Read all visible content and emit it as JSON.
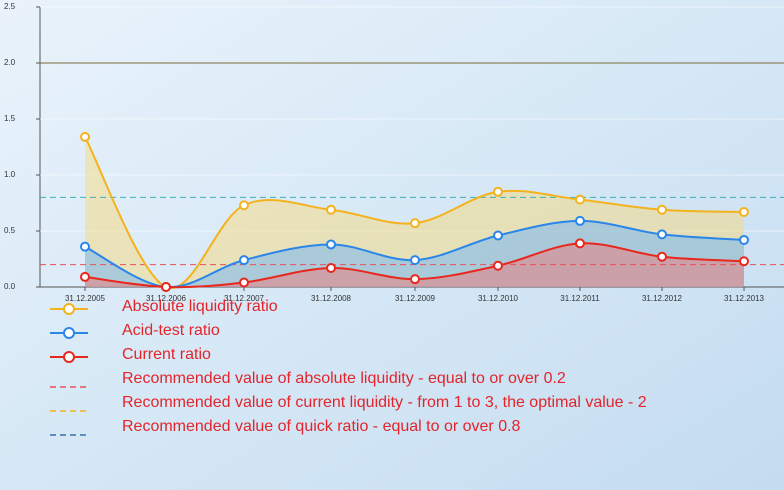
{
  "chart_data": {
    "type": "line",
    "categories": [
      "31.12.2005",
      "31.12.2006",
      "31.12.2007",
      "31.12.2008",
      "31.12.2009",
      "31.12.2010",
      "31.12.2011",
      "31.12.2012",
      "31.12.2013"
    ],
    "series": [
      {
        "name": "Absolute liquidity ratio",
        "color": "#f5b21f",
        "fill": "rgba(250,215,110,0.45)",
        "values": [
          1.34,
          0.0,
          0.73,
          0.69,
          0.57,
          0.85,
          0.78,
          0.69,
          0.67
        ]
      },
      {
        "name": "Acid-test ratio",
        "color": "#2a86e8",
        "fill": "rgba(110,180,250,0.5)",
        "values": [
          0.36,
          0.0,
          0.24,
          0.38,
          0.24,
          0.46,
          0.59,
          0.47,
          0.42
        ]
      },
      {
        "name": "Current ratio",
        "color": "#e8281e",
        "fill": "rgba(240,120,120,0.5)",
        "values": [
          0.09,
          0.0,
          0.04,
          0.17,
          0.07,
          0.19,
          0.39,
          0.27,
          0.23
        ]
      }
    ],
    "reference_lines": [
      {
        "name": "Recommended value of absolute liquidity - equal to or over 0.2",
        "value": 0.2,
        "color": "#e8505a",
        "legend_color": "#e8505a",
        "dash": true
      },
      {
        "name": "Recommended value of current liquidity - from 1 to 3, the optimal value - 2",
        "value": 2,
        "color": "#7a6a3a",
        "legend_color": "#f5b21f",
        "dash": false
      },
      {
        "name": "Recommended value of quick ratio - equal to or  over 0.8",
        "value": 0.8,
        "color": "#3cb0b8",
        "legend_color": "#3a6fa8",
        "dash": true
      }
    ],
    "ylim": [
      0,
      2.5
    ],
    "yticks": [
      {
        "value": 0,
        "label": "0.0"
      },
      0.5,
      {
        "value": 1,
        "label": "1.0"
      },
      1.5,
      {
        "value": 2,
        "label": "2.0"
      },
      2.5
    ]
  }
}
